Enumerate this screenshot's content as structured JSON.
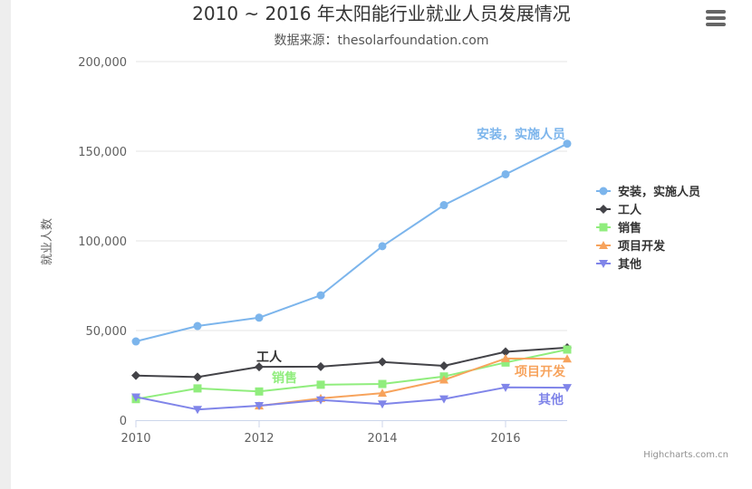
{
  "chart_data": {
    "type": "line",
    "title": "2010 ~ 2016 年太阳能行业就业人员发展情况",
    "subtitle": "数据来源：thesolarfoundation.com",
    "ylabel": "就业人数",
    "xlabel": "",
    "xlim": [
      2010,
      2017
    ],
    "ylim": [
      0,
      200000
    ],
    "x_ticks": [
      "2010",
      "2012",
      "2014",
      "2016"
    ],
    "y_ticks": [
      "0",
      "50,000",
      "100,000",
      "150,000",
      "200,000"
    ],
    "x": [
      2010,
      2011,
      2012,
      2013,
      2014,
      2015,
      2016,
      2017
    ],
    "grid": true,
    "legend_position": "right",
    "series": [
      {
        "name": "安装，实施人员",
        "marker": "circle",
        "color": "#7cb5ec",
        "values": [
          43934,
          52503,
          57177,
          69658,
          97031,
          119931,
          137133,
          154175
        ]
      },
      {
        "name": "工人",
        "marker": "diamond",
        "color": "#434348",
        "values": [
          24916,
          24064,
          29742,
          29851,
          32490,
          30282,
          38121,
          40434
        ]
      },
      {
        "name": "销售",
        "marker": "square",
        "color": "#90ed7d",
        "values": [
          11744,
          17722,
          16005,
          19771,
          20185,
          24377,
          32147,
          39387
        ]
      },
      {
        "name": "项目开发",
        "marker": "triangle",
        "color": "#f7a35c",
        "values": [
          null,
          null,
          7988,
          12169,
          15112,
          22452,
          34400,
          34227
        ]
      },
      {
        "name": "其他",
        "marker": "triangle-down",
        "color": "#8085e9",
        "values": [
          12908,
          5948,
          8105,
          11248,
          8989,
          11816,
          18274,
          18111
        ]
      }
    ],
    "series_labels": [
      {
        "text": "安装，实施人员",
        "color": "#7cb5ec"
      },
      {
        "text": "工人",
        "color": "#333333"
      },
      {
        "text": "销售",
        "color": "#90ed7d"
      },
      {
        "text": "项目开发",
        "color": "#f7a35c"
      },
      {
        "text": "其他",
        "color": "#8085e9"
      }
    ]
  },
  "ui": {
    "menu_icon": "hamburger-menu-icon",
    "credit": "Highcharts.com.cn"
  }
}
